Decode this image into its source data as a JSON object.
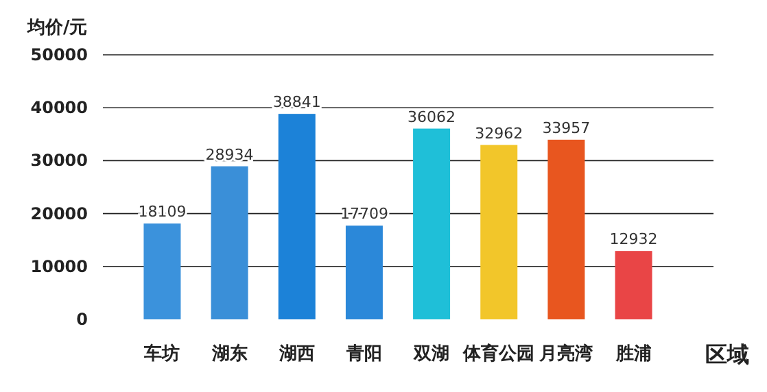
{
  "chart_data": {
    "type": "bar",
    "ylabel": "均价/元",
    "xlabel": "区域",
    "categories": [
      "车坊",
      "湖东",
      "湖西",
      "青阳",
      "双湖",
      "体育公园",
      "月亮湾",
      "胜浦"
    ],
    "values": [
      18109,
      28934,
      38841,
      17709,
      36062,
      32962,
      33957,
      12932
    ],
    "colors": [
      "#3b92dc",
      "#3a8fd8",
      "#1c82d8",
      "#2b88d9",
      "#1fbfd8",
      "#f2c62a",
      "#e8561f",
      "#e94546"
    ],
    "ylim": [
      0,
      50000
    ],
    "yticks": [
      0,
      10000,
      20000,
      30000,
      40000,
      50000
    ],
    "grid": "y",
    "data_labels": true
  }
}
